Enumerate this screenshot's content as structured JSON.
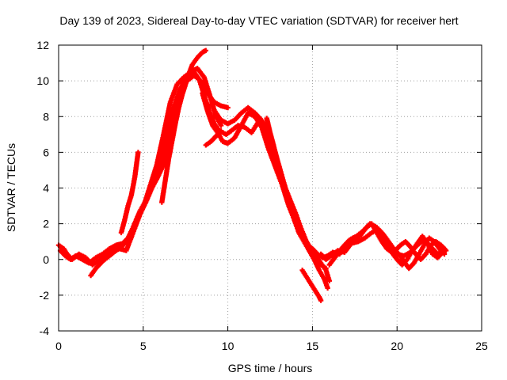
{
  "chart_data": {
    "type": "scatter",
    "title": "Day 139 of 2023, Sidereal Day-to-day VTEC variation (SDTVAR) for receiver hert",
    "xlabel": "GPS time / hours",
    "ylabel": "SDTVAR / TECUs",
    "xlim": [
      0,
      25
    ],
    "ylim": [
      -4,
      12
    ],
    "xticks": [
      0,
      5,
      10,
      15,
      20,
      25
    ],
    "yticks": [
      -4,
      -2,
      0,
      2,
      4,
      6,
      8,
      10,
      12
    ],
    "grid": true,
    "marker": "plus",
    "series": [
      {
        "name": "SDTVAR",
        "color": "#ff0000",
        "tracks": [
          [
            [
              0.0,
              0.8
            ],
            [
              0.3,
              0.6
            ],
            [
              0.5,
              0.3
            ],
            [
              0.8,
              0.0
            ],
            [
              1.2,
              0.3
            ],
            [
              1.6,
              0.1
            ],
            [
              2.0,
              -0.3
            ],
            [
              2.5,
              0.0
            ],
            [
              3.0,
              0.4
            ],
            [
              3.6,
              0.6
            ],
            [
              4.0,
              0.5
            ],
            [
              4.4,
              1.5
            ],
            [
              4.8,
              2.5
            ],
            [
              5.2,
              3.3
            ],
            [
              5.6,
              4.2
            ],
            [
              6.0,
              5.5
            ],
            [
              6.4,
              7.0
            ],
            [
              6.8,
              8.5
            ],
            [
              7.2,
              9.6
            ],
            [
              7.6,
              10.0
            ],
            [
              8.0,
              10.3
            ],
            [
              8.4,
              10.0
            ],
            [
              8.8,
              9.3
            ],
            [
              9.2,
              8.8
            ],
            [
              9.6,
              8.6
            ],
            [
              10.0,
              8.5
            ]
          ],
          [
            [
              0.1,
              0.5
            ],
            [
              0.4,
              0.2
            ],
            [
              0.7,
              0.0
            ],
            [
              1.0,
              0.2
            ],
            [
              1.4,
              0.0
            ],
            [
              1.8,
              -0.2
            ],
            [
              2.2,
              0.1
            ],
            [
              2.6,
              0.3
            ],
            [
              3.0,
              0.6
            ],
            [
              3.4,
              0.8
            ],
            [
              3.8,
              0.9
            ],
            [
              4.1,
              1.2
            ],
            [
              4.4,
              1.8
            ],
            [
              4.8,
              2.7
            ],
            [
              5.1,
              3.2
            ],
            [
              5.4,
              4.1
            ],
            [
              5.8,
              5.3
            ],
            [
              6.2,
              7.0
            ],
            [
              6.6,
              8.8
            ],
            [
              7.0,
              9.8
            ],
            [
              7.4,
              10.2
            ],
            [
              7.8,
              10.5
            ],
            [
              8.2,
              10.7
            ],
            [
              8.6,
              10.2
            ],
            [
              9.0,
              9.0
            ],
            [
              9.3,
              8.0
            ],
            [
              9.6,
              7.5
            ]
          ],
          [
            [
              1.9,
              -0.9
            ],
            [
              2.2,
              -0.5
            ],
            [
              2.6,
              -0.1
            ],
            [
              3.0,
              0.2
            ],
            [
              3.4,
              0.5
            ],
            [
              3.7,
              0.7
            ],
            [
              4.0,
              1.0
            ],
            [
              4.3,
              1.5
            ],
            [
              4.6,
              2.2
            ],
            [
              5.0,
              3.0
            ],
            [
              5.4,
              3.8
            ],
            [
              5.8,
              4.5
            ],
            [
              6.2,
              5.3
            ],
            [
              6.5,
              6.8
            ],
            [
              6.8,
              8.2
            ],
            [
              7.1,
              9.2
            ],
            [
              7.4,
              10.0
            ],
            [
              7.7,
              10.2
            ],
            [
              8.0,
              10.5
            ],
            [
              8.3,
              10.1
            ],
            [
              8.6,
              9.2
            ],
            [
              8.9,
              8.3
            ],
            [
              9.2,
              7.6
            ],
            [
              9.5,
              7.2
            ],
            [
              9.9,
              7.0
            ],
            [
              10.2,
              7.2
            ],
            [
              10.6,
              7.5
            ],
            [
              11.0,
              7.4
            ],
            [
              11.4,
              7.1
            ],
            [
              11.8,
              7.7
            ],
            [
              12.2,
              7.5
            ],
            [
              12.5,
              6.8
            ],
            [
              12.8,
              6.0
            ],
            [
              13.1,
              5.0
            ],
            [
              13.4,
              4.0
            ],
            [
              13.7,
              3.2
            ],
            [
              14.0,
              2.5
            ],
            [
              14.3,
              1.8
            ],
            [
              14.6,
              1.0
            ],
            [
              14.9,
              0.4
            ],
            [
              15.2,
              0.2
            ],
            [
              15.5,
              -0.2
            ],
            [
              15.8,
              -0.6
            ],
            [
              16.0,
              -1.2
            ]
          ],
          [
            [
              3.7,
              1.5
            ],
            [
              3.9,
              2.2
            ],
            [
              4.1,
              3.0
            ],
            [
              4.3,
              3.6
            ],
            [
              4.5,
              4.6
            ],
            [
              4.6,
              5.3
            ],
            [
              4.7,
              6.0
            ]
          ],
          [
            [
              6.1,
              3.2
            ],
            [
              6.3,
              4.4
            ],
            [
              6.5,
              5.6
            ],
            [
              6.7,
              6.6
            ],
            [
              6.9,
              7.6
            ],
            [
              7.1,
              8.5
            ],
            [
              7.3,
              9.2
            ],
            [
              7.5,
              9.8
            ],
            [
              7.7,
              10.4
            ],
            [
              7.9,
              10.9
            ],
            [
              8.2,
              11.3
            ],
            [
              8.5,
              11.6
            ],
            [
              8.7,
              11.7
            ]
          ],
          [
            [
              8.5,
              9.3
            ],
            [
              8.8,
              8.3
            ],
            [
              9.1,
              7.5
            ],
            [
              9.4,
              7.1
            ],
            [
              9.7,
              6.6
            ],
            [
              10.0,
              6.5
            ],
            [
              10.4,
              6.8
            ],
            [
              10.8,
              7.5
            ],
            [
              11.2,
              8.2
            ],
            [
              11.6,
              8.0
            ],
            [
              12.0,
              7.4
            ],
            [
              12.4,
              6.2
            ],
            [
              12.8,
              5.2
            ],
            [
              13.2,
              4.2
            ],
            [
              13.5,
              3.3
            ],
            [
              13.8,
              2.6
            ],
            [
              14.1,
              1.8
            ],
            [
              14.4,
              1.3
            ],
            [
              14.7,
              0.8
            ],
            [
              15.0,
              0.6
            ],
            [
              15.3,
              0.3
            ],
            [
              15.6,
              0.1
            ],
            [
              15.9,
              0.2
            ],
            [
              16.2,
              0.4
            ],
            [
              16.6,
              0.3
            ],
            [
              17.0,
              0.8
            ],
            [
              17.4,
              1.2
            ],
            [
              17.8,
              1.3
            ],
            [
              18.2,
              1.8
            ],
            [
              18.5,
              2.0
            ],
            [
              18.8,
              1.5
            ],
            [
              19.1,
              1.0
            ],
            [
              19.4,
              0.6
            ],
            [
              19.7,
              0.4
            ],
            [
              20.0,
              0.3
            ],
            [
              20.4,
              0.2
            ],
            [
              20.8,
              0.4
            ],
            [
              21.2,
              0.8
            ],
            [
              21.6,
              1.1
            ],
            [
              22.0,
              0.7
            ],
            [
              22.4,
              0.3
            ],
            [
              22.8,
              0.5
            ]
          ],
          [
            [
              9.0,
              8.7
            ],
            [
              9.3,
              8.2
            ],
            [
              9.6,
              7.8
            ],
            [
              10.0,
              7.6
            ],
            [
              10.4,
              7.8
            ],
            [
              10.8,
              8.2
            ],
            [
              11.2,
              8.5
            ],
            [
              11.6,
              8.2
            ],
            [
              12.0,
              7.8
            ],
            [
              12.4,
              7.0
            ],
            [
              12.7,
              6.0
            ],
            [
              13.0,
              5.0
            ],
            [
              13.3,
              4.0
            ],
            [
              13.6,
              3.0
            ],
            [
              13.9,
              2.3
            ],
            [
              14.2,
              1.5
            ],
            [
              14.5,
              1.0
            ],
            [
              14.8,
              0.5
            ],
            [
              15.1,
              0.0
            ],
            [
              15.4,
              -0.6
            ],
            [
              15.7,
              -1.1
            ],
            [
              15.9,
              -1.6
            ]
          ],
          [
            [
              8.7,
              6.4
            ],
            [
              9.0,
              6.6
            ],
            [
              9.3,
              6.9
            ],
            [
              9.6,
              7.2
            ]
          ],
          [
            [
              12.3,
              7.9
            ],
            [
              12.5,
              7.1
            ],
            [
              12.7,
              6.4
            ],
            [
              12.9,
              5.6
            ],
            [
              13.1,
              4.9
            ],
            [
              13.4,
              4.0
            ],
            [
              13.7,
              3.3
            ],
            [
              14.0,
              2.6
            ],
            [
              14.3,
              1.8
            ],
            [
              14.6,
              1.1
            ],
            [
              14.9,
              0.6
            ],
            [
              15.2,
              0.0
            ],
            [
              15.5,
              -0.3
            ],
            [
              15.8,
              -0.5
            ]
          ],
          [
            [
              14.4,
              -0.6
            ],
            [
              14.6,
              -0.9
            ],
            [
              14.8,
              -1.2
            ],
            [
              15.0,
              -1.5
            ],
            [
              15.2,
              -1.8
            ],
            [
              15.4,
              -2.1
            ],
            [
              15.5,
              -2.3
            ]
          ],
          [
            [
              15.5,
              0.3
            ],
            [
              15.8,
              0.0
            ],
            [
              16.1,
              0.2
            ],
            [
              16.5,
              0.5
            ],
            [
              16.9,
              0.4
            ],
            [
              17.3,
              0.9
            ],
            [
              17.7,
              1.0
            ],
            [
              18.1,
              1.2
            ],
            [
              18.5,
              1.5
            ],
            [
              18.9,
              1.7
            ],
            [
              19.2,
              1.4
            ],
            [
              19.5,
              1.0
            ],
            [
              19.8,
              0.6
            ],
            [
              20.1,
              0.3
            ],
            [
              20.4,
              -0.1
            ],
            [
              20.7,
              -0.5
            ],
            [
              21.0,
              -0.2
            ],
            [
              21.3,
              0.3
            ],
            [
              21.6,
              0.8
            ],
            [
              21.9,
              1.2
            ],
            [
              22.2,
              1.0
            ],
            [
              22.5,
              0.6
            ],
            [
              22.8,
              0.3
            ]
          ],
          [
            [
              16.0,
              -0.3
            ],
            [
              16.4,
              0.2
            ],
            [
              16.8,
              0.7
            ],
            [
              17.2,
              1.1
            ],
            [
              17.6,
              1.3
            ],
            [
              18.0,
              1.6
            ],
            [
              18.4,
              2.0
            ],
            [
              18.8,
              1.8
            ],
            [
              19.2,
              1.2
            ],
            [
              19.6,
              0.5
            ],
            [
              20.0,
              0.0
            ],
            [
              20.3,
              -0.3
            ],
            [
              20.6,
              0.0
            ],
            [
              20.9,
              0.5
            ],
            [
              21.2,
              0.9
            ],
            [
              21.5,
              1.3
            ],
            [
              21.8,
              0.9
            ],
            [
              22.1,
              0.3
            ],
            [
              22.4,
              0.1
            ],
            [
              22.7,
              0.4
            ]
          ],
          [
            [
              19.9,
              0.5
            ],
            [
              20.2,
              0.8
            ],
            [
              20.5,
              1.0
            ],
            [
              20.8,
              0.7
            ],
            [
              21.1,
              0.3
            ],
            [
              21.4,
              0.0
            ],
            [
              21.7,
              0.3
            ],
            [
              22.0,
              0.8
            ],
            [
              22.3,
              1.0
            ],
            [
              22.6,
              0.8
            ],
            [
              22.9,
              0.5
            ]
          ]
        ]
      }
    ]
  }
}
